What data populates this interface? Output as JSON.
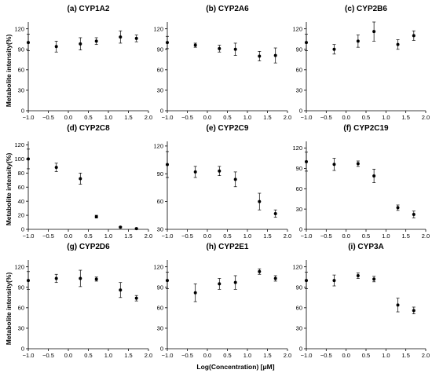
{
  "figure": {
    "xlabel": "Log(Concentration) [μM]",
    "ylabel": "Metabolite intensity(%)"
  },
  "chart_data": [
    {
      "type": "scatter",
      "title": "(a) CYP1A2",
      "x": [
        -1,
        -0.3,
        0.3,
        0.7,
        1.3,
        1.7
      ],
      "y": [
        100,
        94,
        98,
        102,
        108,
        106
      ],
      "err": [
        12,
        8,
        9,
        5,
        9,
        5
      ],
      "xlim": [
        -1,
        2
      ],
      "ylim": [
        0,
        130
      ],
      "xticks": [
        "−1.0",
        "−0.5",
        "0.0",
        "0.5",
        "1.0",
        "1.5",
        "2.0"
      ],
      "yticks": [
        "0",
        "30",
        "60",
        "90",
        "120"
      ]
    },
    {
      "type": "scatter",
      "title": "(b) CYP2A6",
      "x": [
        -1,
        -0.3,
        0.3,
        0.7,
        1.3,
        1.7
      ],
      "y": [
        100,
        96,
        91,
        90,
        80,
        81
      ],
      "err": [
        9,
        3,
        5,
        9,
        7,
        11
      ],
      "xlim": [
        -1,
        2
      ],
      "ylim": [
        0,
        130
      ],
      "xticks": [
        "−1.0",
        "−0.5",
        "0.0",
        "0.5",
        "1.0",
        "1.5",
        "2.0"
      ],
      "yticks": [
        "0",
        "30",
        "60",
        "90",
        "120"
      ]
    },
    {
      "type": "scatter",
      "title": "(c) CYP2B6",
      "x": [
        -1,
        -0.3,
        0.3,
        0.7,
        1.3,
        1.7
      ],
      "y": [
        100,
        90,
        102,
        116,
        97,
        110
      ],
      "err": [
        12,
        7,
        9,
        14,
        7,
        7
      ],
      "xlim": [
        -1,
        2
      ],
      "ylim": [
        0,
        130
      ],
      "xticks": [
        "−1.0",
        "−0.5",
        "0.0",
        "0.5",
        "1.0",
        "1.5",
        "2.0"
      ],
      "yticks": [
        "0",
        "30",
        "60",
        "90",
        "120"
      ]
    },
    {
      "type": "scatter",
      "title": "(d) CYP2C8",
      "x": [
        -1,
        -0.3,
        0.3,
        0.7,
        1.3,
        1.7
      ],
      "y": [
        100,
        88,
        72,
        18,
        3,
        1
      ],
      "err": [
        14,
        6,
        8,
        2,
        1,
        1
      ],
      "xlim": [
        -1,
        2
      ],
      "ylim": [
        0,
        125
      ],
      "xticks": [
        "−1.0",
        "−0.5",
        "0.0",
        "0.5",
        "1.0",
        "1.5",
        "2.0"
      ],
      "yticks": [
        "0",
        "20",
        "40",
        "60",
        "80",
        "100",
        "120"
      ]
    },
    {
      "type": "scatter",
      "title": "(e) CYP2C9",
      "x": [
        -1,
        -0.3,
        0.3,
        0.7,
        1.3,
        1.7
      ],
      "y": [
        100,
        92,
        93,
        84,
        60,
        47
      ],
      "err": [
        14,
        6,
        5,
        8,
        9,
        4
      ],
      "xlim": [
        -1,
        2
      ],
      "ylim": [
        30,
        125
      ],
      "xticks": [
        "−1.0",
        "−0.5",
        "0.0",
        "0.5",
        "1.0",
        "1.5",
        "2.0"
      ],
      "yticks": [
        "30",
        "60",
        "90",
        "120"
      ]
    },
    {
      "type": "scatter",
      "title": "(f) CYP2C19",
      "x": [
        -1,
        -0.3,
        0.3,
        0.7,
        1.3,
        1.7
      ],
      "y": [
        100,
        96,
        97,
        79,
        32,
        22
      ],
      "err": [
        14,
        9,
        4,
        10,
        4,
        5
      ],
      "xlim": [
        -1,
        2
      ],
      "ylim": [
        0,
        130
      ],
      "xticks": [
        "−1.0",
        "−0.5",
        "0.0",
        "0.5",
        "1.0",
        "1.5",
        "2.0"
      ],
      "yticks": [
        "0",
        "30",
        "60",
        "90",
        "120"
      ]
    },
    {
      "type": "scatter",
      "title": "(g) CYP2D6",
      "x": [
        -1,
        -0.3,
        0.3,
        0.7,
        1.3,
        1.7
      ],
      "y": [
        100,
        103,
        103,
        102,
        86,
        74
      ],
      "err": [
        13,
        6,
        12,
        3,
        11,
        4
      ],
      "xlim": [
        -1,
        2
      ],
      "ylim": [
        0,
        130
      ],
      "xticks": [
        "−1.0",
        "−0.5",
        "0.0",
        "0.5",
        "1.0",
        "1.5",
        "2.0"
      ],
      "yticks": [
        "0",
        "30",
        "60",
        "90",
        "120"
      ]
    },
    {
      "type": "scatter",
      "title": "(h) CYP2E1",
      "x": [
        -1,
        -0.3,
        0.3,
        0.7,
        1.3,
        1.7
      ],
      "y": [
        100,
        82,
        95,
        97,
        113,
        103
      ],
      "err": [
        12,
        13,
        8,
        10,
        4,
        4
      ],
      "xlim": [
        -1,
        2
      ],
      "ylim": [
        0,
        130
      ],
      "xticks": [
        "−1.0",
        "−0.5",
        "0.0",
        "0.5",
        "1.0",
        "1.5",
        "2.0"
      ],
      "yticks": [
        "0",
        "30",
        "60",
        "90",
        "120"
      ]
    },
    {
      "type": "scatter",
      "title": "(i) CYP3A",
      "x": [
        -1,
        -0.3,
        0.3,
        0.7,
        1.3,
        1.7
      ],
      "y": [
        100,
        100,
        107,
        102,
        64,
        56
      ],
      "err": [
        12,
        8,
        4,
        4,
        10,
        5
      ],
      "xlim": [
        -1,
        2
      ],
      "ylim": [
        0,
        130
      ],
      "xticks": [
        "−1.0",
        "−0.5",
        "0.0",
        "0.5",
        "1.0",
        "1.5",
        "2.0"
      ],
      "yticks": [
        "0",
        "30",
        "60",
        "90",
        "120"
      ]
    }
  ]
}
